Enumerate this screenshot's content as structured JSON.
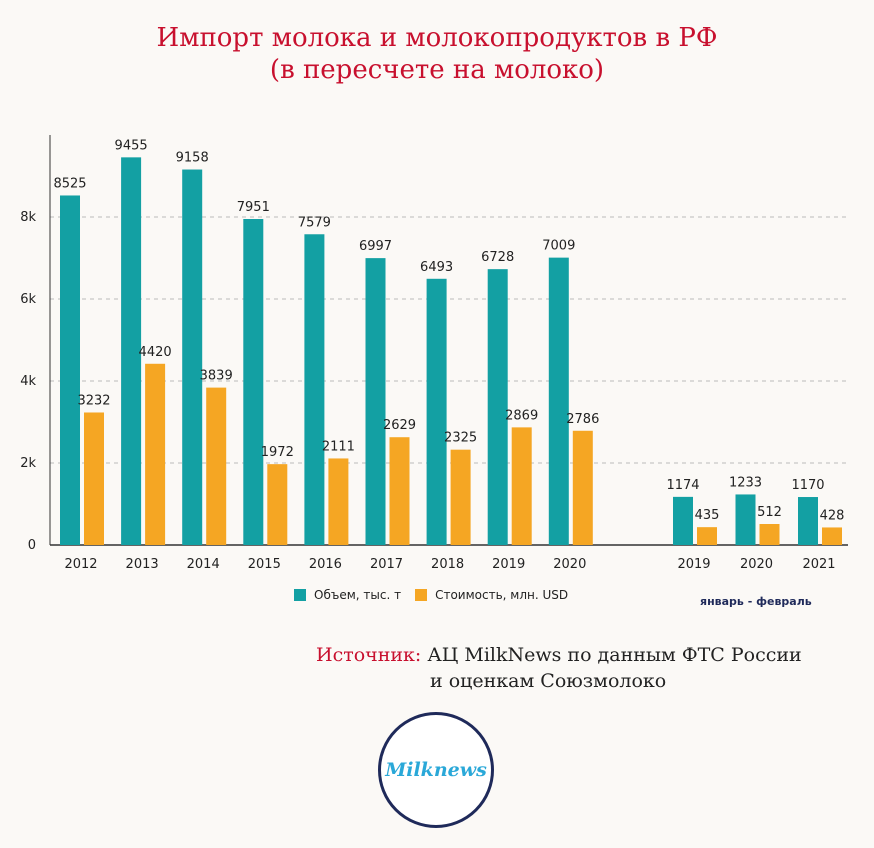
{
  "title": {
    "line1": "Импорт молока и молокопродуктов в РФ",
    "line2": "(в пересчете на молоко)"
  },
  "colors": {
    "series1": "#13a0a3",
    "series2": "#f5a623",
    "title": "#c8102e"
  },
  "chart_data": {
    "type": "bar",
    "categories": [
      "2012",
      "2013",
      "2014",
      "2015",
      "2016",
      "2017",
      "2018",
      "2019",
      "2020",
      "2019",
      "2020",
      "2021"
    ],
    "series": [
      {
        "name": "Объем, тыс. т",
        "values": [
          8525,
          9455,
          9158,
          7951,
          7579,
          6997,
          6493,
          6728,
          7009,
          1174,
          1233,
          1170
        ]
      },
      {
        "name": "Стоимость, млн. USD",
        "values": [
          3232,
          4420,
          3839,
          1972,
          2111,
          2629,
          2325,
          2869,
          2786,
          435,
          512,
          428
        ]
      }
    ],
    "yticks": [
      "0",
      "2k",
      "4k",
      "6k",
      "8k"
    ],
    "ylim": [
      0,
      10000
    ],
    "grid": true,
    "legend_position": "bottom",
    "period_note": "январь - февраль"
  },
  "source": {
    "label": "Источник:",
    "line1": " АЦ MilkNews по данным ФТС России",
    "line2": "и оценкам Союзмолоко"
  },
  "logo": {
    "text": "Milknews"
  }
}
